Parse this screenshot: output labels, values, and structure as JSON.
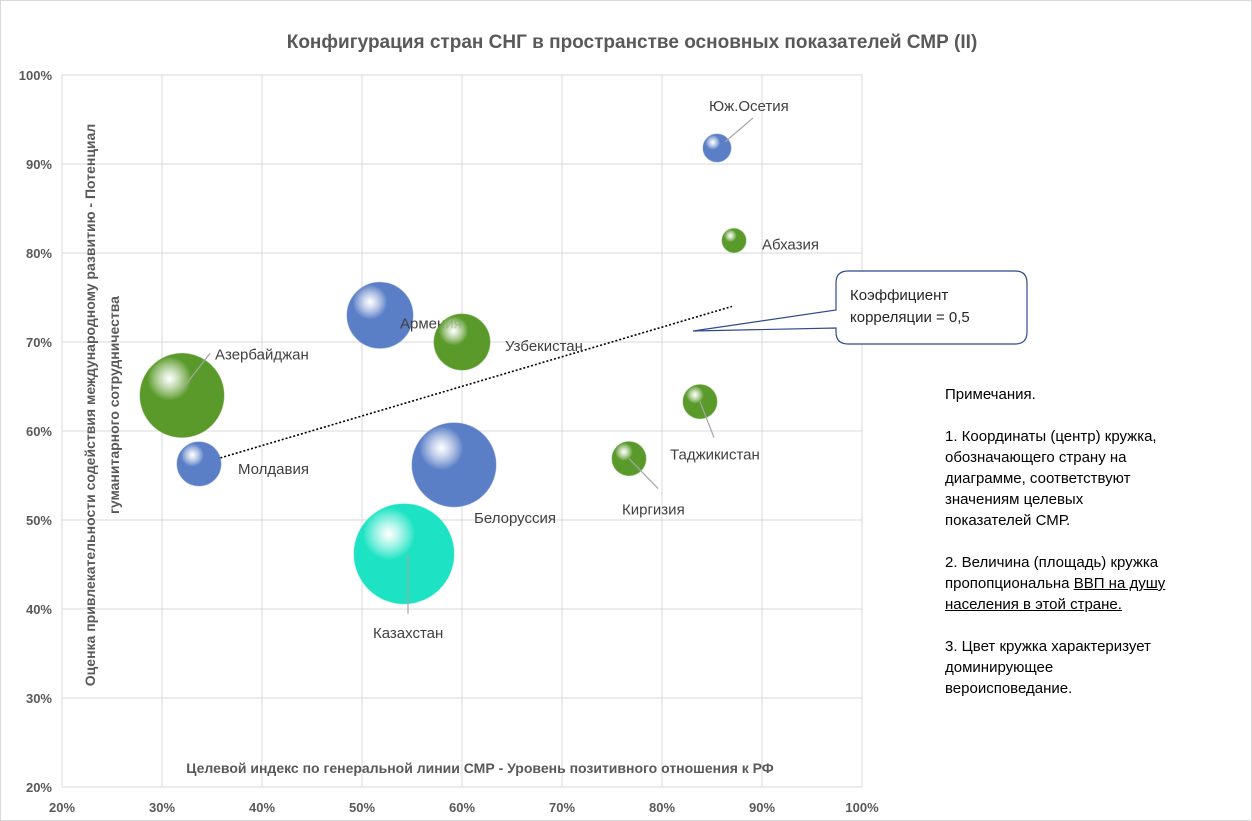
{
  "chart_data": {
    "type": "bubble",
    "title": "Конфигурация стран СНГ в пространстве основных показателей СМР (II)",
    "xlabel": "Целевой индекс по генеральной линии СМР - Уровень позитивного отношения к РФ",
    "ylabel": [
      "Оценка привлекательности содействия международному развитию - Потенциал",
      "гуманитарного сотрудничества"
    ],
    "xlim": [
      20,
      100
    ],
    "ylim": [
      20,
      100
    ],
    "xticks": [
      {
        "value": 20,
        "label": "20%"
      },
      {
        "value": 30,
        "label": "30%"
      },
      {
        "value": 40,
        "label": "40%"
      },
      {
        "value": 50,
        "label": "50%"
      },
      {
        "value": 60,
        "label": "60%"
      },
      {
        "value": 70,
        "label": "70%"
      },
      {
        "value": 80,
        "label": "80%"
      },
      {
        "value": 90,
        "label": "90%"
      },
      {
        "value": 100,
        "label": "100%"
      }
    ],
    "yticks": [
      {
        "value": 20,
        "label": "20%"
      },
      {
        "value": 30,
        "label": "30%"
      },
      {
        "value": 40,
        "label": "40%"
      },
      {
        "value": 50,
        "label": "50%"
      },
      {
        "value": 60,
        "label": "60%"
      },
      {
        "value": 70,
        "label": "70%"
      },
      {
        "value": 80,
        "label": "80%"
      },
      {
        "value": 90,
        "label": "90%"
      },
      {
        "value": 100,
        "label": "100%"
      }
    ],
    "grid": true,
    "points": {
      "labels": [
        "Юж.Осетия",
        "Абхазия",
        "Армения",
        "Узбекистан",
        "Азербайджан",
        "Молдавия",
        "Белоруссия",
        "Казахстан",
        "Таджикистан",
        "Киргизия"
      ],
      "x": [
        85.5,
        87.2,
        51.8,
        60,
        32,
        33.7,
        59.2,
        54.2,
        83.8,
        76.7
      ],
      "y": [
        91.8,
        81.4,
        73,
        70,
        64,
        56.3,
        56.2,
        46.2,
        63.3,
        56.9
      ],
      "size": [
        196,
        144,
        1089,
        784,
        1764,
        484,
        1764,
        2500,
        289,
        289
      ],
      "colors": [
        "#5b7fc7",
        "#5a9a2a",
        "#5b7fc7",
        "#5a9a2a",
        "#5a9a2a",
        "#5b7fc7",
        "#5b7fc7",
        "#1de3c4",
        "#5a9a2a",
        "#5a9a2a"
      ]
    },
    "trendline": {
      "x": [
        32,
        87
      ],
      "y": [
        55.7,
        74
      ]
    },
    "annotation": "Коэффициент корреляции = 0,5",
    "notes": {
      "heading": "Примечания.",
      "item1": "1. Координаты (центр) кружка, обозначающего страну на диаграмме, соответствуют значениям целевых показателей СМР.",
      "item2": "2. Величина (площадь) кружка пропопциональна",
      "item2_underlined": "ВВП на душу населения в этой стране.",
      "item3": "3. Цвет кружка характеризует доминирующее вероисповедание."
    }
  }
}
